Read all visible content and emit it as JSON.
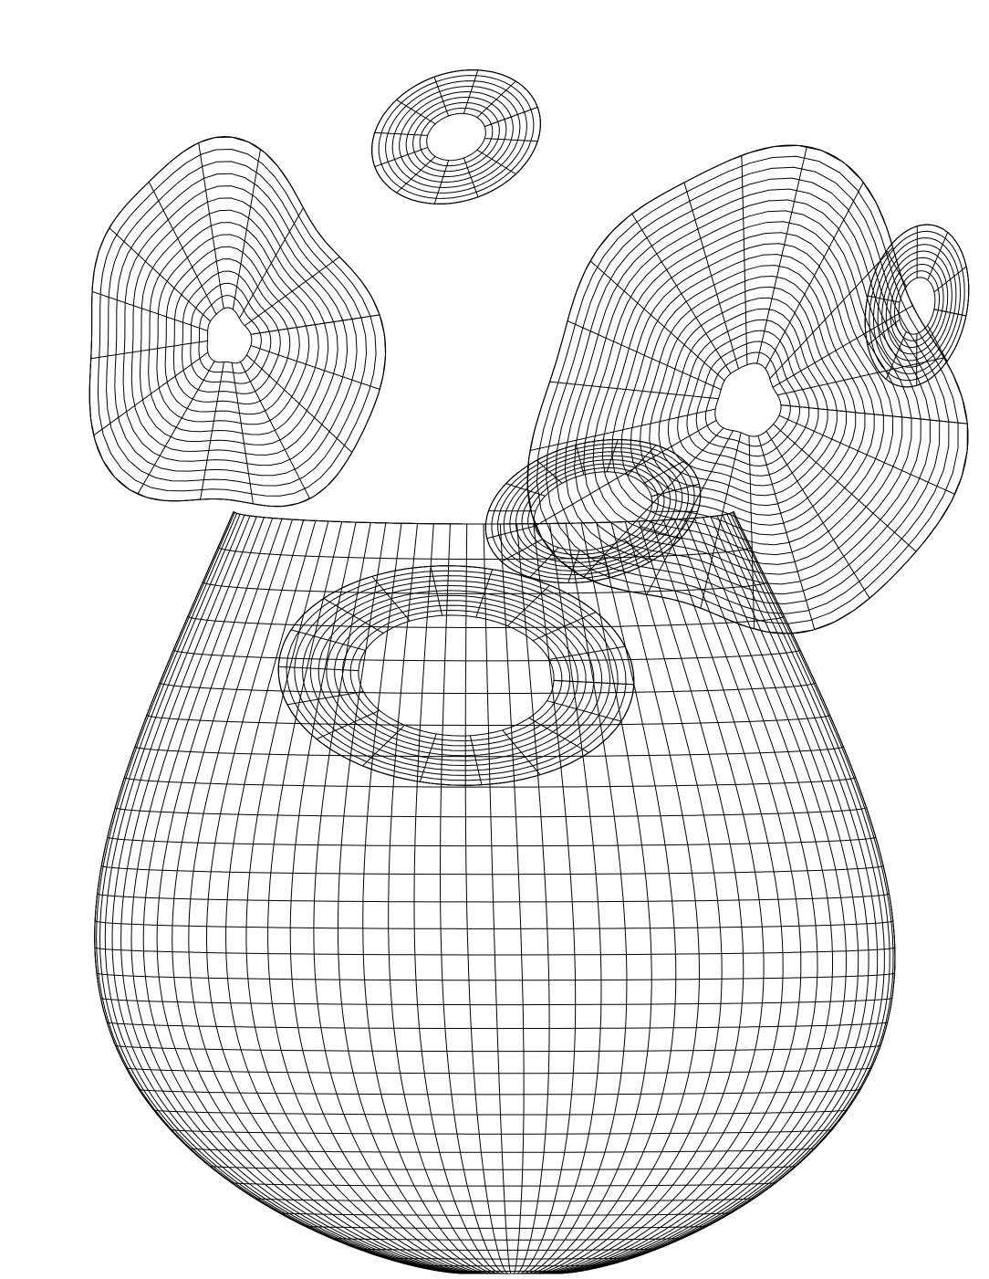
{
  "figure": {
    "background": "#ffffff",
    "line_color": "#000000",
    "subject": "heart-wireframe-mesh",
    "parts": [
      {
        "id": "ventricles",
        "u_lines": 46,
        "v_lines": 34
      },
      {
        "id": "atrium-left",
        "u_lines": 16,
        "v_lines": 14
      },
      {
        "id": "atrium-right",
        "u_lines": 22,
        "v_lines": 20
      },
      {
        "id": "valve-ring-front",
        "u_lines": 18,
        "v_lines": 10
      },
      {
        "id": "valve-ring-back",
        "u_lines": 16,
        "v_lines": 8
      },
      {
        "id": "vessel-top",
        "u_lines": 12,
        "v_lines": 8
      },
      {
        "id": "vessel-right",
        "u_lines": 10,
        "v_lines": 8
      }
    ]
  }
}
